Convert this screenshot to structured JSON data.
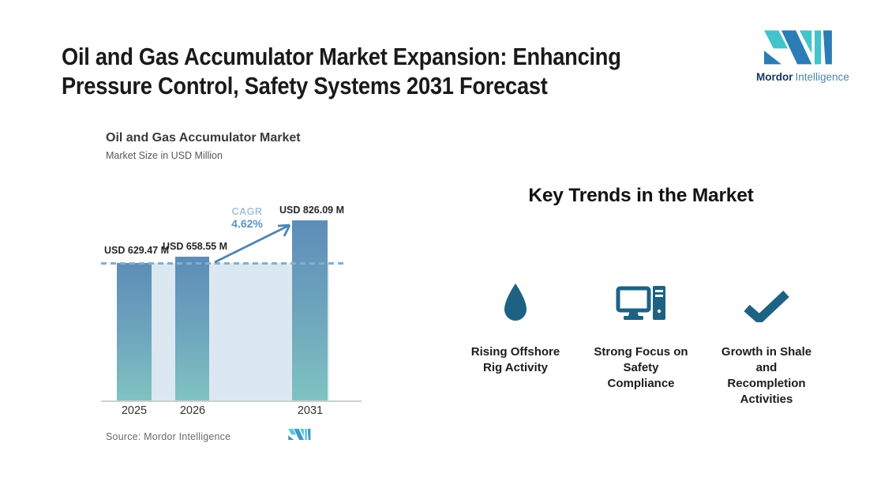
{
  "header": {
    "title_line1": "Oil and Gas Accumulator Market Expansion: Enhancing",
    "title_line2": "Pressure Control, Safety Systems 2031 Forecast"
  },
  "brand": {
    "name_bold": "Mordor",
    "name_light": "Intelligence"
  },
  "chart_data": {
    "type": "bar",
    "title": "Oil and Gas Accumulator Market",
    "subtitle": "Market Size in USD Million",
    "categories": [
      "2025",
      "2026",
      "2031"
    ],
    "values": [
      629.47,
      658.55,
      826.09
    ],
    "value_labels": [
      "USD 629.47 M",
      "USD 658.55 M",
      "USD 826.09 M"
    ],
    "ylabel": "Market Size in USD Million",
    "ylim": [
      0,
      900
    ],
    "grid": false,
    "legend": "none",
    "cagr": {
      "label": "CAGR",
      "value": "4.62%"
    },
    "source": "Source: Mordor Intelligence"
  },
  "trends": {
    "heading": "Key Trends in the Market",
    "items": [
      {
        "icon": "droplet-icon",
        "label": "Rising Offshore\nRig Activity"
      },
      {
        "icon": "computer-icon",
        "label": "Strong Focus on\nSafety\nCompliance"
      },
      {
        "icon": "checkmark-icon",
        "label": "Growth in Shale\nand\nRecompletion\nActivities"
      }
    ]
  },
  "colors": {
    "bar_top": "#5D8DB8",
    "bar_bottom": "#7FC3C1",
    "band": "#DCE8F1",
    "dashed": "#85AECE",
    "arrow": "#4D86B8",
    "cagr_label": "#A6C3DC",
    "cagr_value": "#5B93C3",
    "icon": "#1D6283",
    "logo_teal": "#43C4CC",
    "logo_blue": "#2C7CB5",
    "logo_small_teal": "#5FCAD4",
    "logo_small_blue": "#3E9AC8"
  }
}
